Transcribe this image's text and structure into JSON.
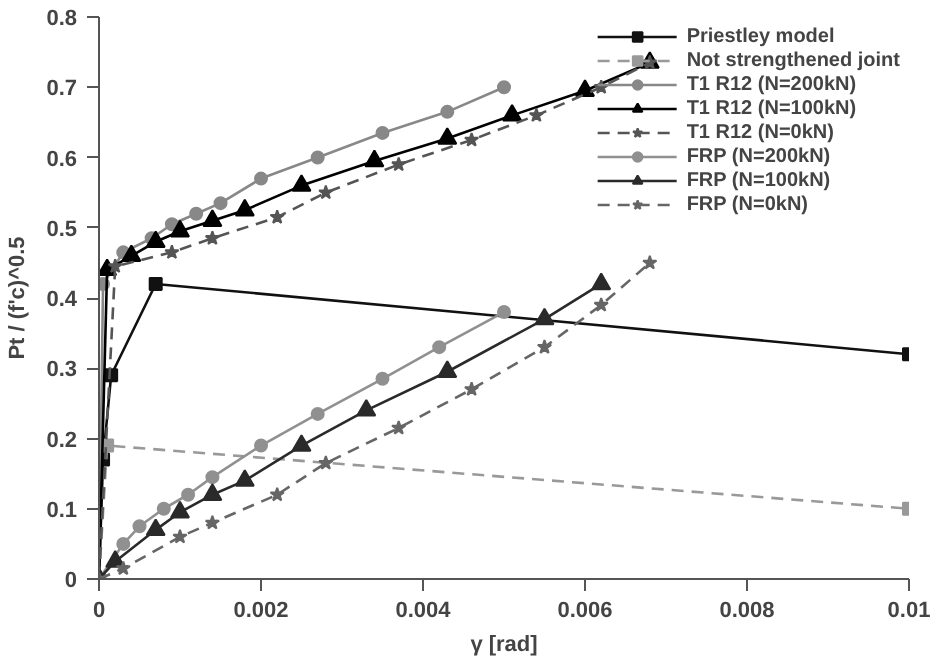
{
  "chart_data": {
    "type": "line",
    "xlabel": "γ [rad]",
    "ylabel": "Pt / (f'c)^0.5",
    "xlim": [
      0,
      0.01
    ],
    "ylim": [
      0,
      0.8
    ],
    "xticks": [
      0,
      0.002,
      0.004,
      0.006,
      0.008,
      0.01
    ],
    "yticks": [
      0,
      0.1,
      0.2,
      0.3,
      0.4,
      0.5,
      0.6,
      0.7,
      0.8
    ],
    "grid": false,
    "legend": "top right",
    "series": [
      {
        "name": "Priestley model",
        "color": "#111111",
        "marker": "square",
        "line_style": "solid",
        "x": [
          0,
          5e-05,
          0.00015,
          0.0007,
          0.01
        ],
        "values": [
          0,
          0.17,
          0.29,
          0.42,
          0.32
        ]
      },
      {
        "name": "Not strengthened joint",
        "color": "#999999",
        "marker": "square",
        "line_style": "dashed",
        "x": [
          0,
          0.0001,
          0.01
        ],
        "values": [
          0,
          0.19,
          0.1
        ]
      },
      {
        "name": "T1 R12 (N=200kN)",
        "color": "#888888",
        "marker": "circle",
        "line_style": "solid",
        "x": [
          0,
          5e-05,
          0.0003,
          0.00065,
          0.0009,
          0.0012,
          0.0015,
          0.002,
          0.0027,
          0.0035,
          0.0043,
          0.005
        ],
        "values": [
          0,
          0.42,
          0.465,
          0.485,
          0.505,
          0.52,
          0.535,
          0.57,
          0.6,
          0.635,
          0.665,
          0.7
        ]
      },
      {
        "name": "T1 R12 (N=100kN)",
        "color": "#000000",
        "marker": "triangle",
        "line_style": "solid",
        "x": [
          0,
          0.0001,
          0.0004,
          0.0007,
          0.001,
          0.0014,
          0.0018,
          0.0025,
          0.0034,
          0.0043,
          0.0051,
          0.006,
          0.0068
        ],
        "values": [
          0,
          0.44,
          0.46,
          0.48,
          0.495,
          0.51,
          0.525,
          0.56,
          0.595,
          0.627,
          0.66,
          0.695,
          0.735
        ]
      },
      {
        "name": "T1 R12 (N=0kN)",
        "color": "#555555",
        "marker": "star",
        "line_style": "dashed",
        "x": [
          0,
          0.0002,
          0.0009,
          0.0014,
          0.0022,
          0.0028,
          0.0037,
          0.0046,
          0.0054,
          0.0062,
          0.0068
        ],
        "values": [
          0,
          0.445,
          0.465,
          0.485,
          0.515,
          0.55,
          0.59,
          0.625,
          0.66,
          0.7,
          0.735
        ]
      },
      {
        "name": "FRP (N=200kN)",
        "color": "#909090",
        "marker": "circle",
        "line_style": "solid",
        "x": [
          0,
          0.0003,
          0.0005,
          0.0008,
          0.0011,
          0.0014,
          0.002,
          0.0027,
          0.0035,
          0.0042,
          0.005
        ],
        "values": [
          0,
          0.05,
          0.075,
          0.1,
          0.12,
          0.145,
          0.19,
          0.235,
          0.285,
          0.33,
          0.38
        ]
      },
      {
        "name": "FRP (N=100kN)",
        "color": "#2a2a2a",
        "marker": "triangle",
        "line_style": "solid",
        "x": [
          0,
          0.0002,
          0.0007,
          0.001,
          0.0014,
          0.0018,
          0.0025,
          0.0033,
          0.0043,
          0.0055,
          0.0062
        ],
        "values": [
          0,
          0.025,
          0.07,
          0.095,
          0.12,
          0.14,
          0.19,
          0.24,
          0.295,
          0.37,
          0.42
        ]
      },
      {
        "name": "FRP (N=0kN)",
        "color": "#666666",
        "marker": "star",
        "line_style": "dashed",
        "x": [
          0,
          0.0003,
          0.001,
          0.0014,
          0.0022,
          0.0028,
          0.0037,
          0.0046,
          0.0055,
          0.0062,
          0.0068
        ],
        "values": [
          0,
          0.015,
          0.06,
          0.08,
          0.12,
          0.165,
          0.215,
          0.27,
          0.33,
          0.39,
          0.45
        ]
      }
    ]
  }
}
